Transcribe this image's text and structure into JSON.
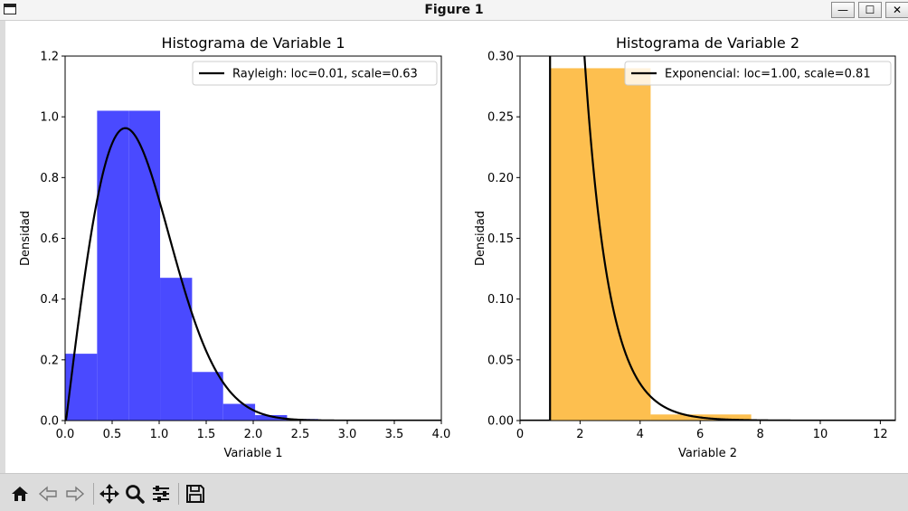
{
  "window": {
    "title": "Figure 1"
  },
  "toolbar": {
    "buttons": [
      {
        "name": "home",
        "icon": "home-icon"
      },
      {
        "name": "back",
        "icon": "back-arrow-icon"
      },
      {
        "name": "forward",
        "icon": "forward-arrow-icon"
      },
      {
        "name": "pan",
        "icon": "move-icon"
      },
      {
        "name": "zoom",
        "icon": "magnifier-icon"
      },
      {
        "name": "configure",
        "icon": "sliders-icon"
      },
      {
        "name": "save",
        "icon": "floppy-disk-icon"
      }
    ]
  },
  "chart_data": [
    {
      "type": "bar",
      "title": "Histograma de Variable 1",
      "xlabel": "Variable 1",
      "ylabel": "Densidad",
      "xlim": [
        0.0,
        4.0
      ],
      "ylim": [
        0.0,
        1.2
      ],
      "xticks": [
        "0.0",
        "0.5",
        "1.0",
        "1.5",
        "2.0",
        "2.5",
        "3.0",
        "3.5",
        "4.0"
      ],
      "yticks": [
        "0.0",
        "0.2",
        "0.4",
        "0.6",
        "0.8",
        "1.0",
        "1.2"
      ],
      "bar_color": "#4a4aff",
      "bins": [
        {
          "x0": 0.0,
          "x1": 0.34,
          "value": 0.22
        },
        {
          "x0": 0.34,
          "x1": 0.68,
          "value": 1.02
        },
        {
          "x0": 0.68,
          "x1": 1.01,
          "value": 1.02
        },
        {
          "x0": 1.01,
          "x1": 1.35,
          "value": 0.47
        },
        {
          "x0": 1.35,
          "x1": 1.68,
          "value": 0.16
        },
        {
          "x0": 1.68,
          "x1": 2.02,
          "value": 0.055
        },
        {
          "x0": 2.02,
          "x1": 2.36,
          "value": 0.018
        },
        {
          "x0": 2.36,
          "x1": 2.69,
          "value": 0.005
        }
      ],
      "curve": {
        "dist": "rayleigh",
        "loc": 0.01,
        "scale": 0.63,
        "color": "#000000",
        "x_range": [
          0.0,
          4.0
        ]
      },
      "legend": {
        "label": "Rayleigh: loc=0.01, scale=0.63",
        "position": "top-right"
      }
    },
    {
      "type": "bar",
      "title": "Histograma de Variable 2",
      "xlabel": "Variable 2",
      "ylabel": "Densidad",
      "xlim": [
        0,
        12.5
      ],
      "ylim": [
        0.0,
        0.3
      ],
      "xticks": [
        "0",
        "2",
        "4",
        "6",
        "8",
        "10",
        "12"
      ],
      "yticks": [
        "0.00",
        "0.05",
        "0.10",
        "0.15",
        "0.20",
        "0.25",
        "0.30"
      ],
      "bar_color": "#fdbf4f",
      "bins": [
        {
          "x0": 1.0,
          "x1": 4.35,
          "value": 0.29
        },
        {
          "x0": 4.35,
          "x1": 7.7,
          "value": 0.005
        }
      ],
      "curve": {
        "dist": "expon",
        "loc": 1.0,
        "scale": 0.81,
        "color": "#000000",
        "x_range": [
          0.0,
          12.5
        ]
      },
      "legend": {
        "label": "Exponencial: loc=1.00, scale=0.81",
        "position": "top-right"
      }
    }
  ]
}
